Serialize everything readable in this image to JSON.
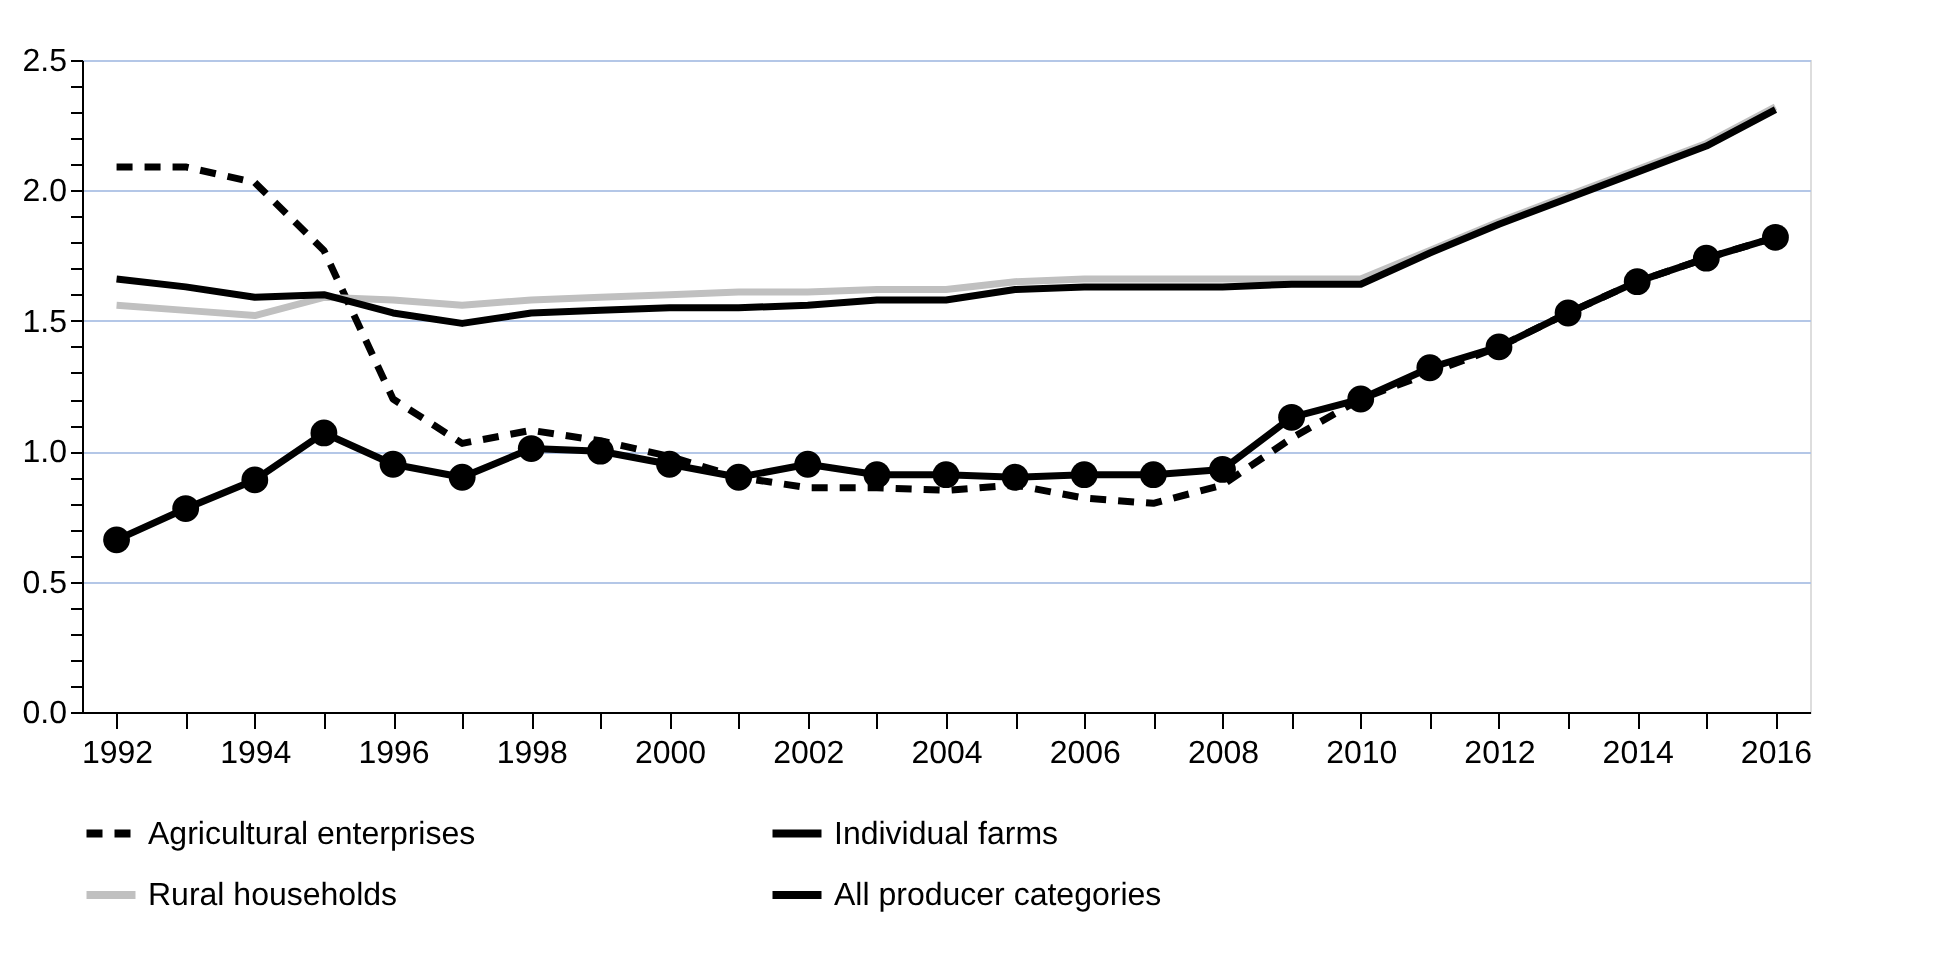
{
  "chart_data": {
    "type": "line",
    "x": [
      1992,
      1993,
      1994,
      1995,
      1996,
      1997,
      1998,
      1999,
      2000,
      2001,
      2002,
      2003,
      2004,
      2005,
      2006,
      2007,
      2008,
      2009,
      2010,
      2011,
      2012,
      2013,
      2014,
      2015,
      2016
    ],
    "series": [
      {
        "name": "Agricultural enterprises",
        "color": "#000000",
        "line_style": "dashed",
        "marker": "none",
        "values": [
          2.09,
          2.09,
          2.03,
          1.77,
          1.2,
          1.03,
          1.08,
          1.04,
          0.98,
          0.9,
          0.86,
          0.86,
          0.85,
          0.87,
          0.82,
          0.8,
          0.87,
          1.05,
          1.2,
          1.3,
          1.4,
          1.53,
          1.65,
          1.74,
          1.82
        ]
      },
      {
        "name": "Individual farms",
        "color": "#000000",
        "line_style": "solid",
        "marker": "circle",
        "values": [
          0.66,
          0.78,
          0.89,
          1.07,
          0.95,
          0.9,
          1.01,
          1.0,
          0.95,
          0.9,
          0.95,
          0.91,
          0.91,
          0.9,
          0.91,
          0.91,
          0.93,
          1.13,
          1.2,
          1.32,
          1.4,
          1.53,
          1.65,
          1.74,
          1.82
        ]
      },
      {
        "name": "Rural households",
        "color": "#c0c0c0",
        "line_style": "solid",
        "marker": "none",
        "values": [
          1.56,
          1.54,
          1.52,
          1.59,
          1.58,
          1.56,
          1.58,
          1.59,
          1.6,
          1.61,
          1.61,
          1.62,
          1.62,
          1.65,
          1.66,
          1.66,
          1.66,
          1.66,
          1.66,
          1.77,
          1.88,
          1.98,
          2.08,
          2.18,
          2.32
        ]
      },
      {
        "name": "All producer categories",
        "color": "#000000",
        "line_style": "solid",
        "marker": "none",
        "values": [
          1.66,
          1.63,
          1.59,
          1.6,
          1.53,
          1.49,
          1.53,
          1.54,
          1.55,
          1.55,
          1.56,
          1.58,
          1.58,
          1.62,
          1.63,
          1.63,
          1.63,
          1.64,
          1.64,
          1.76,
          1.87,
          1.97,
          2.07,
          2.17,
          2.31
        ]
      }
    ],
    "xlim": [
      1991.5,
      2016.5
    ],
    "xticks": [
      1992,
      {
        "value": 1993,
        "label": null
      },
      1994,
      {
        "value": 1995,
        "label": null
      },
      1996,
      {
        "value": 1997,
        "label": null
      },
      1998,
      {
        "value": 1999,
        "label": null
      },
      2000,
      {
        "value": 2001,
        "label": null
      },
      2002,
      {
        "value": 2003,
        "label": null
      },
      2004,
      {
        "value": 2005,
        "label": null
      },
      2006,
      {
        "value": 2007,
        "label": null
      },
      2008,
      {
        "value": 2009,
        "label": null
      },
      2010,
      {
        "value": 2011,
        "label": null
      },
      2012,
      {
        "value": 2013,
        "label": null
      },
      2014,
      {
        "value": 2015,
        "label": null
      },
      2016
    ],
    "ylim": [
      0,
      2.5
    ],
    "yticks": [
      {
        "value": 0,
        "label": "0.0"
      },
      {
        "value": 0.1,
        "label": null
      },
      {
        "value": 0.2,
        "label": null
      },
      {
        "value": 0.3,
        "label": null
      },
      {
        "value": 0.4,
        "label": null
      },
      {
        "value": 0.5,
        "label": "0.5"
      },
      {
        "value": 0.6,
        "label": null
      },
      {
        "value": 0.7,
        "label": null
      },
      {
        "value": 0.8,
        "label": null
      },
      {
        "value": 0.9,
        "label": null
      },
      {
        "value": 1,
        "label": "1.0"
      },
      {
        "value": 1.1,
        "label": null
      },
      {
        "value": 1.2,
        "label": null
      },
      {
        "value": 1.3,
        "label": null
      },
      {
        "value": 1.4,
        "label": null
      },
      {
        "value": 1.5,
        "label": "1.5"
      },
      {
        "value": 1.6,
        "label": null
      },
      {
        "value": 1.7,
        "label": null
      },
      {
        "value": 1.8,
        "label": null
      },
      {
        "value": 1.9,
        "label": null
      },
      {
        "value": 2,
        "label": "2.0"
      },
      {
        "value": 2.1,
        "label": null
      },
      {
        "value": 2.2,
        "label": null
      },
      {
        "value": 2.3,
        "label": null
      },
      {
        "value": 2.4,
        "label": null
      },
      {
        "value": 2.5,
        "label": "2.5"
      }
    ],
    "grid": "y",
    "legend": "bottom"
  }
}
